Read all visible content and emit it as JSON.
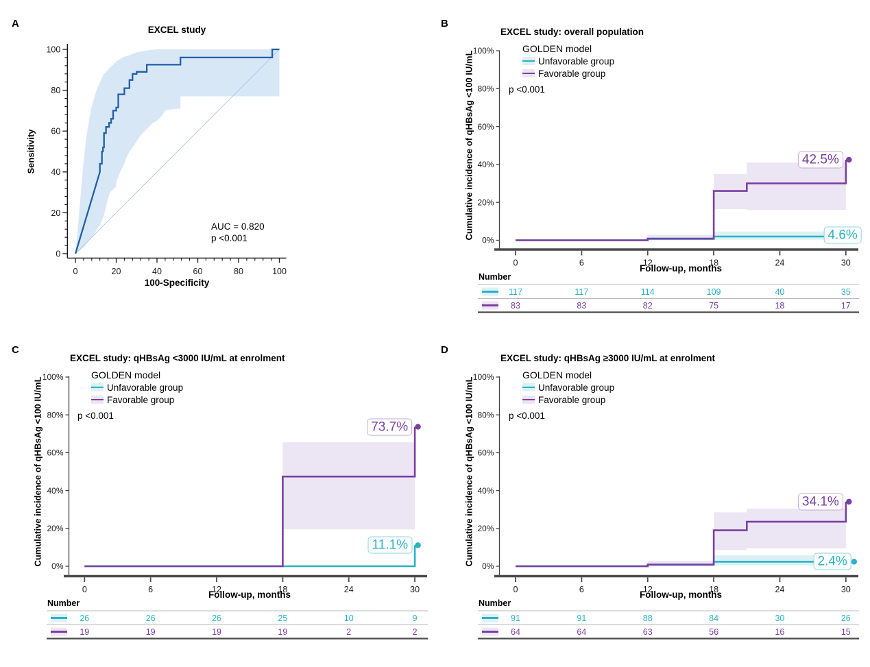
{
  "colors": {
    "unfavorable": "#29b2c4",
    "unfavorable_band": "#dcf1f5",
    "unfavorable_box_border": "#8fd3de",
    "favorable": "#7a3fa0",
    "favorable_band": "#ece5f4",
    "favorable_box_border": "#c7a7d9",
    "roc_line": "#1f5fa6",
    "roc_band": "#d8e7f6",
    "roc_diagonal": "#a6c8e6",
    "axis": "#4a4a4a",
    "table_line": "#b9b9b9"
  },
  "panels": {
    "A": {
      "letter": "A",
      "title": "EXCEL study",
      "xlabel": "100-Specificity",
      "ylabel": "Sensitivity",
      "auc_text": "AUC = 0.820",
      "p_text": "p <0.001"
    },
    "B": {
      "letter": "B",
      "title": "EXCEL study: overall population",
      "legend_title": "GOLDEN model",
      "legend_items": [
        "Unfavorable group",
        "Favorable group"
      ],
      "p_text": "p <0.001",
      "xlabel": "Follow-up, months",
      "ylabel": "Cumulative incidence of qHBsAg <100 IU/mL",
      "number_label": "Number"
    },
    "C": {
      "letter": "C",
      "title": "EXCEL study: qHBsAg <3000 IU/mL at enrolment",
      "legend_title": "GOLDEN model",
      "legend_items": [
        "Unfavorable group",
        "Favorable group"
      ],
      "p_text": "p <0.001",
      "xlabel": "Follow-up, months",
      "ylabel": "Cumulative incidence of qHBsAg <100 IU/mL",
      "number_label": "Number"
    },
    "D": {
      "letter": "D",
      "title": "EXCEL study: qHBsAg ≥3000 IU/mL at enrolment",
      "legend_title": "GOLDEN model",
      "legend_items": [
        "Unfavorable group",
        "Favorable group"
      ],
      "p_text": "p <0.001",
      "xlabel": "Follow-up, months",
      "ylabel": "Cumulative incidence of qHBsAg <100 IU/mL",
      "number_label": "Number"
    }
  },
  "chart_data": [
    {
      "panel": "A",
      "type": "line",
      "subtype": "roc_curve",
      "title": "EXCEL study",
      "xlabel": "100-Specificity",
      "ylabel": "Sensitivity",
      "xlim": [
        0,
        100
      ],
      "ylim": [
        0,
        100
      ],
      "x_ticks": [
        0,
        20,
        40,
        60,
        80,
        100
      ],
      "y_ticks": [
        0,
        20,
        40,
        60,
        80,
        100
      ],
      "minor_tick_step": 4,
      "annotations": [
        "AUC = 0.820",
        "p <0.001"
      ],
      "series": [
        {
          "name": "ROC curve",
          "color_key": "roc",
          "points": [
            [
              0,
              0
            ],
            [
              12,
              40
            ],
            [
              12,
              44
            ],
            [
              13,
              44
            ],
            [
              13,
              50
            ],
            [
              13.5,
              50
            ],
            [
              13.5,
              52
            ],
            [
              14,
              52
            ],
            [
              14,
              59
            ],
            [
              15,
              59
            ],
            [
              15,
              62
            ],
            [
              16.5,
              62
            ],
            [
              16.5,
              64
            ],
            [
              17.5,
              64
            ],
            [
              17.5,
              66
            ],
            [
              18.5,
              66
            ],
            [
              18.5,
              70
            ],
            [
              20,
              70
            ],
            [
              20,
              71.5
            ],
            [
              21,
              71.5
            ],
            [
              21,
              78
            ],
            [
              24,
              78
            ],
            [
              24,
              81
            ],
            [
              26.5,
              81
            ],
            [
              26.5,
              85
            ],
            [
              28,
              85
            ],
            [
              28,
              88
            ],
            [
              30,
              88
            ],
            [
              30,
              89
            ],
            [
              35,
              89
            ],
            [
              35,
              92.5
            ],
            [
              51.5,
              92.5
            ],
            [
              51.5,
              96
            ],
            [
              96.5,
              96
            ],
            [
              96.5,
              100
            ],
            [
              100,
              100
            ]
          ]
        }
      ],
      "ci_band": {
        "upper": [
          [
            0,
            0
          ],
          [
            1,
            10
          ],
          [
            2,
            22
          ],
          [
            3,
            34
          ],
          [
            4,
            45
          ],
          [
            5,
            54
          ],
          [
            6,
            61
          ],
          [
            7,
            67
          ],
          [
            8,
            72
          ],
          [
            10,
            79
          ],
          [
            12,
            84
          ],
          [
            14,
            88
          ],
          [
            16,
            90
          ],
          [
            18,
            92
          ],
          [
            20,
            94
          ],
          [
            23,
            96
          ],
          [
            26,
            97
          ],
          [
            30,
            98.5
          ],
          [
            35,
            99.5
          ],
          [
            40,
            100
          ],
          [
            100,
            100
          ]
        ],
        "lower": [
          [
            0,
            0
          ],
          [
            4,
            3
          ],
          [
            8,
            8
          ],
          [
            12,
            14
          ],
          [
            14,
            19
          ],
          [
            15,
            23
          ],
          [
            16,
            27
          ],
          [
            17,
            30
          ],
          [
            18,
            31
          ],
          [
            20,
            33
          ],
          [
            20,
            35
          ],
          [
            22,
            40
          ],
          [
            24,
            44
          ],
          [
            25,
            47
          ],
          [
            26,
            49
          ],
          [
            28,
            52
          ],
          [
            30,
            55
          ],
          [
            32,
            58
          ],
          [
            34,
            60
          ],
          [
            36,
            62
          ],
          [
            38,
            64
          ],
          [
            40,
            65
          ],
          [
            42,
            67
          ],
          [
            44,
            70
          ],
          [
            46,
            70.5
          ],
          [
            51.5,
            71
          ],
          [
            51.5,
            77
          ],
          [
            100,
            77
          ]
        ]
      },
      "diagonal": [
        [
          0,
          0
        ],
        [
          100,
          100
        ]
      ]
    },
    {
      "panel": "B",
      "type": "line",
      "subtype": "cumulative_incidence",
      "title": "EXCEL study: overall population",
      "xlabel": "Follow-up, months",
      "ylabel": "Cumulative incidence of qHBsAg <100 IU/mL",
      "legend_title": "GOLDEN model",
      "p_value": "p <0.001",
      "xlim": [
        0,
        30
      ],
      "x_ticks": [
        0,
        6,
        12,
        18,
        24,
        30
      ],
      "y_ticks": [
        0,
        20,
        40,
        60,
        80,
        100
      ],
      "series": [
        {
          "name": "Unfavorable group",
          "color_key": "cyan",
          "steps": [
            [
              0,
              0
            ],
            [
              12,
              0
            ],
            [
              12,
              0.7
            ],
            [
              18,
              0.7
            ],
            [
              18,
              2
            ],
            [
              30,
              2
            ],
            [
              30,
              4.6
            ]
          ],
          "band": [
            {
              "x0": 12,
              "x1": 18,
              "low": 0,
              "high": 1.6
            },
            {
              "x0": 18,
              "x1": 30,
              "low": 0.3,
              "high": 4.6
            }
          ],
          "final_label": "4.6%",
          "final_value": 4.6,
          "label_y_pct": 2.8,
          "label_dx": 23,
          "dot": false,
          "numbers": [
            117,
            117,
            114,
            109,
            40,
            35
          ]
        },
        {
          "name": "Favorable group",
          "color_key": "purple",
          "steps": [
            [
              0,
              0
            ],
            [
              12,
              0
            ],
            [
              12,
              0.9
            ],
            [
              18,
              0.9
            ],
            [
              18,
              26
            ],
            [
              21,
              26
            ],
            [
              21,
              30
            ],
            [
              30,
              30
            ],
            [
              30,
              42.5
            ]
          ],
          "band": [
            {
              "x0": 12,
              "x1": 18,
              "low": 0,
              "high": 2.8
            },
            {
              "x0": 18,
              "x1": 21,
              "low": 16.5,
              "high": 35
            },
            {
              "x0": 21,
              "x1": 30,
              "low": 16,
              "high": 41
            }
          ],
          "final_label": "42.5%",
          "final_value": 42.5,
          "label_dx": -4,
          "dot": true,
          "dot_dx": 4.5,
          "numbers": [
            83,
            83,
            82,
            75,
            18,
            17
          ]
        }
      ]
    },
    {
      "panel": "C",
      "type": "line",
      "subtype": "cumulative_incidence",
      "title": "EXCEL study: qHBsAg <3000 IU/mL at enrolment",
      "xlabel": "Follow-up, months",
      "ylabel": "Cumulative incidence of qHBsAg <100 IU/mL",
      "legend_title": "GOLDEN model",
      "p_value": "p <0.001",
      "xlim": [
        0,
        30
      ],
      "x_ticks": [
        0,
        6,
        12,
        18,
        24,
        30
      ],
      "y_ticks": [
        0,
        20,
        40,
        60,
        80,
        100
      ],
      "series": [
        {
          "name": "Unfavorable group",
          "color_key": "cyan",
          "steps": [
            [
              0,
              0
            ],
            [
              30,
              0
            ],
            [
              30,
              11.1
            ]
          ],
          "band": [],
          "final_label": "11.1%",
          "final_value": 11.1,
          "label_dx": -4,
          "dot": true,
          "dot_dx": 4.5,
          "numbers": [
            26,
            26,
            26,
            25,
            10,
            9
          ]
        },
        {
          "name": "Favorable group",
          "color_key": "purple",
          "steps": [
            [
              0,
              0
            ],
            [
              18,
              0
            ],
            [
              18,
              47.4
            ],
            [
              30,
              47.4
            ],
            [
              30,
              73.7
            ]
          ],
          "band": [
            {
              "x0": 18,
              "x1": 30,
              "low": 19.5,
              "high": 65.5
            }
          ],
          "final_label": "73.7%",
          "final_value": 73.7,
          "label_dx": -4,
          "dot": true,
          "dot_dx": 4.5,
          "numbers": [
            19,
            19,
            19,
            19,
            2,
            2
          ]
        }
      ]
    },
    {
      "panel": "D",
      "type": "line",
      "subtype": "cumulative_incidence",
      "title": "EXCEL study: qHBsAg ≥3000 IU/mL at enrolment",
      "xlabel": "Follow-up, months",
      "ylabel": "Cumulative incidence of qHBsAg <100 IU/mL",
      "legend_title": "GOLDEN model",
      "p_value": "p <0.001",
      "xlim": [
        0,
        30
      ],
      "x_ticks": [
        0,
        6,
        12,
        18,
        24,
        30
      ],
      "y_ticks": [
        0,
        20,
        40,
        60,
        80,
        100
      ],
      "series": [
        {
          "name": "Unfavorable group",
          "color_key": "cyan",
          "steps": [
            [
              0,
              0
            ],
            [
              12,
              0
            ],
            [
              12,
              0.8
            ],
            [
              18,
              0.8
            ],
            [
              18,
              2.4
            ],
            [
              30,
              2.4
            ]
          ],
          "band": [
            {
              "x0": 12,
              "x1": 18,
              "low": 0,
              "high": 1.6
            },
            {
              "x0": 18,
              "x1": 30,
              "low": 0.4,
              "high": 5.8
            }
          ],
          "final_label": "2.4%",
          "final_value": 2.4,
          "label_dx": 8,
          "dot": true,
          "dot_dx": 12,
          "numbers": [
            91,
            91,
            88,
            84,
            30,
            26
          ]
        },
        {
          "name": "Favorable group",
          "color_key": "purple",
          "steps": [
            [
              0,
              0
            ],
            [
              12,
              0
            ],
            [
              12,
              0.9
            ],
            [
              18,
              0.9
            ],
            [
              18,
              19
            ],
            [
              21,
              19
            ],
            [
              21,
              23.5
            ],
            [
              30,
              23.5
            ],
            [
              30,
              34.1
            ]
          ],
          "band": [
            {
              "x0": 12,
              "x1": 18,
              "low": 0,
              "high": 2.8
            },
            {
              "x0": 18,
              "x1": 21,
              "low": 8.5,
              "high": 28.5
            },
            {
              "x0": 21,
              "x1": 30,
              "low": 9.5,
              "high": 30.5
            }
          ],
          "final_label": "34.1%",
          "final_value": 34.1,
          "label_dx": -4,
          "dot": true,
          "dot_dx": 4.5,
          "numbers": [
            64,
            64,
            63,
            56,
            16,
            15
          ]
        }
      ]
    }
  ]
}
